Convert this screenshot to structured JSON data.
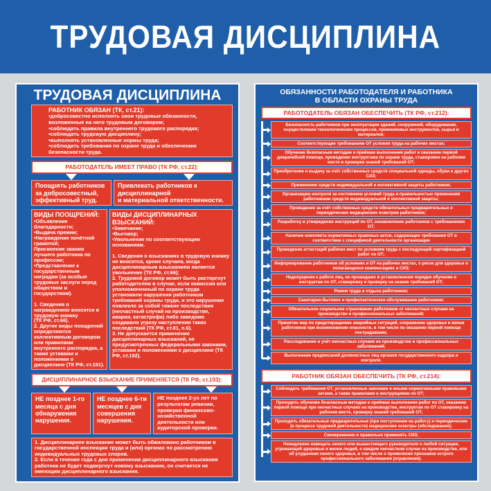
{
  "header": {
    "title": "ТРУДОВАЯ ДИСЦИПЛИНА"
  },
  "colors": {
    "blue": "#1f5ea8",
    "red": "#e23b2b",
    "background": "#d5d7d9"
  },
  "left": {
    "title": "ТРУДОВАЯ ДИСЦИПЛИНА",
    "employee_duties": {
      "heading": "РАБОТНИК ОБЯЗАН (ТК, ст.21):",
      "text": "•добросовестно исполнять свои трудовые обязанности, возложенные на него трудовым договором;\n•соблюдать правила внутреннего трудового распорядка;\n•соблюдать трудовую дисциплину;\n•выполнять установленные нормы труда;\n•соблюдать требования по охране труда и обеспечению безопасности труда."
    },
    "employer_rights": {
      "heading": "РАБОТОДАТЕЛЬ ИМЕЕТ ПРАВО (ТК РФ, ст.22):",
      "items": [
        "Поощрять работников за добросовестный, эффективный труд.",
        "Привлекать работников к дисциплинарной\nи материальной ответственности."
      ]
    },
    "rewards": {
      "heading": "ВИДЫ ПООЩРЕНИЙ:",
      "text": "•Объявление благодарности;\n•Выдача премии;\n•Награждение почётной грамотой;\nПрисвоение звания лучшего работника по профессии;\n•Представление к государственным наградам (за особые трудовые заслуги перед обществом и государством).\n\n1. Сведения о награждениях вносятся в трудовую книжку\n(ТК РФ, ст.66).\n2. Другие виды поощрений определяются коллективным договором или правилами внутреннего распорядка, а также уставами и положениями о дисциплине (ТК РФ, ст.191)."
    },
    "penalties": {
      "heading": "ВИДЫ ДИСЦИПЛИНАРНЫХ ВЗЫСКАНИЙ:",
      "text": "•Замечание;\n•Выговор;\n•Увольнение по соответствующим основаниям.\n\n1. Сведения о взысканиях в трудовую книжку не вносятся, кроме случаев, когда дисциплинарным взысканием является увольнение (ТК РФ, ст.66);\n2. Трудовой договор может быть расторгнут работодателем в случае, если комиссия или уполномоченный по охране труда установили нарушения работником требований охраны труда, и это нарушение повлекло за собой тяжкие последствия (несчастный случай на производстве, авария, катастрофа) либо заведомо создавало угрозу наступления таких последствий (ТК РФ, ст.81, п.6).\n3. Не допускается применение дисциплинарных взысканий, не предусмотренных федеральными законами, уставами и положениями о дисциплине (ТК РФ, ст.192)."
    },
    "penalty_application": {
      "heading": "ДИСЦИПЛИНАРНОЕ ВЗЫСКАНИЕ ПРИМЕНЯЕТСЯ (ТК РФ, ст.193):",
      "items": [
        "НЕ позднее 1-го месяца с дня обнаружения нарушения.",
        "НЕ позднее 6-ти месяцев с дня совершения нарушения.",
        "НЕ позднее 2-ух лет по результатам ревизии, проверки финансово-хозяйственной деятельности или аудиторской проверки."
      ]
    },
    "notes": "1. Дисциплинарное взыскание может быть обжаловано работником в государственной инспекции труда и (или) органах по рассмотрению индивидуальных трудовых споров.\n2. Если в течение года с дня применения дисциплинарного взыскания работник не будет подвергнут новому взысканию, он считается не имеющим дисциплинарного взыскания."
  },
  "right": {
    "title": "ОБЯЗАННОСТИ РАБОТОДАТЕЛЯ И РАБОТНИКА\nВ ОБЛАСТИ ОХРАНЫ ТРУДА",
    "employer": {
      "heading": "РАБОТОДАТЕЛЬ ОБЯЗАН ОБЕСПЕЧИТЬ (ТК РФ, ст.212):",
      "items": [
        "Безопасность работников при эксплуатации зданий, сооружений, оборудования, осуществлении технологических процессов, применяемых инструментов, сырья и материалов;",
        "Соответствующие требованиям ОТ условия труда на рабочих местах;",
        "Обучение безопасным методам и приёмам выполнения работ и оказанию первой доврачебной помощи, проведение инструктажа по охране труда, стажировки на рабочем месте и проверки знаний требований ОТ;",
        "Приобретение и выдачу за счёт собственных средств специальной одежды, обуви и других СИЗ;",
        "Применение средств индивидуальной и коллективной защиты работников;",
        "Организацию контроля за состоянием условий труда и правильностью применения работниками средств индивидуальной и коллективной защиты;",
        "Проведение за счёт собственных средств обязательных предварительных и периодических медицинских осмотров работников;",
        "Разработку и утверждение инструкций по ОТ, ознакомление работников с требованиями ОТ;",
        "Наличие комплекта нормативных правовых актов, содержащих требования ОТ в соответствии с спецификой деятельности организации",
        "Проведение аттестаций рабочих мест по условиям труда с последующей сертификацией работ по ОТ;",
        "Информирование работников об условиях и ОТ на рабочих местах, о риске для здоровья и полагающихся компенсациях и СИЗ;",
        "Недопущение к работе лиц, не прошедших в установленном порядке обучение и инструктаж по ОТ, стажировку и проверку на знание требований ОТ;",
        "Режим труда и отдыха работников;",
        "Санитарно-бытовое и профилактическое обслуживание работников;",
        "Обязательное социальное страхование работников от несчастных случаев на производстве и профессиональных заболеваний;",
        "Принятие мер по предотвращению аварийных ситуаций, сохранению здоровья и жизни работников при возникновении опасности, в том числе по оказанию первой помощи пострадавшим;",
        "Расследование и учёт несчастных случаев на производстве и профессиональных заболеваний;",
        "Выполнение предписаний должностных лиц органов государственного надзора и контроля."
      ]
    },
    "employee": {
      "heading": "РАБОТНИК ОБЯЗАН ОБЕСПЕЧИТЬ (ТК РФ, ст.214):",
      "items": [
        "Соблюдать требования ОТ, установленные законами и иными нормативными правовыми актами, а также правилами и инструкциями по ОТ;",
        "Проходить обучение безопасным методам и приёмам выполнения работ по ОТ, оказанию первой помощи при несчастных случаях на производстве, инструктаж по ОТ стажировку на рабочем месте, проверку знаний требований ОТ;",
        "Проходить обязательные предварительные (при поступлении на работу) и периодические (в процессе трудовой деятельности) медицинские осмотры (обследования);",
        "Своевременно и правильно применять СИЗ;",
        "Немедленно извещать своего или вышестоящего руководителя о любой ситуации, угрожающей здоровью и жизни людей, о каждом несчастном случае на производстве, или об ухудшении своего здоровья, в том числе о проявлении признаков острого профессионального заболевания (отравления)."
      ]
    }
  }
}
